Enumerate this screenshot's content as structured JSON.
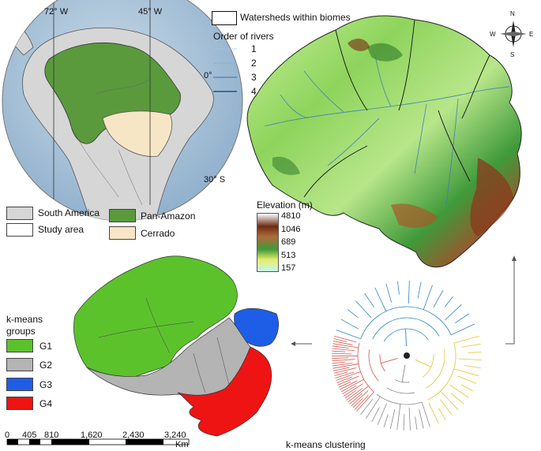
{
  "globe": {
    "meridian_left": "72° W",
    "meridian_right": "45° W",
    "parallel_equator": "0°",
    "parallel_south": "30° S"
  },
  "globe_legend": {
    "south_america": "South America",
    "study_area": "Study area",
    "pan_amazon": "Pan-Amazon",
    "cerrado": "Cerrado",
    "colors": {
      "south_america": "#d6d6d6",
      "pan_amazon": "#5a9a3c",
      "cerrado": "#f6e6c6"
    }
  },
  "elevation_map": {
    "watersheds_label": "Watersheds within biomes",
    "rivers_title": "Order of rivers",
    "river_orders": [
      "1",
      "2",
      "3",
      "4"
    ],
    "elevation_title": "Elevation (m)",
    "elevation_ticks": [
      "4810",
      "1046",
      "689",
      "513",
      "157"
    ],
    "compass": {
      "n": "N",
      "s": "S",
      "e": "E",
      "w": "W"
    }
  },
  "kmeans_map": {
    "legend_title_1": "k-means",
    "legend_title_2": "groups",
    "groups": [
      {
        "label": "G1",
        "color": "#5cc22c"
      },
      {
        "label": "G2",
        "color": "#b4b4b4"
      },
      {
        "label": "G3",
        "color": "#1e5ee6"
      },
      {
        "label": "G4",
        "color": "#ee1414"
      }
    ],
    "scale_ticks": [
      "0",
      "405",
      "810",
      "1,620",
      "2,430",
      "3,240"
    ],
    "scale_unit": "Km"
  },
  "dendrogram": {
    "caption": "k-means clustering",
    "cluster_colors": {
      "red": "#d2574e",
      "blue": "#2e86c1",
      "yellow": "#e8c230",
      "gray": "#8a8a8a"
    }
  }
}
